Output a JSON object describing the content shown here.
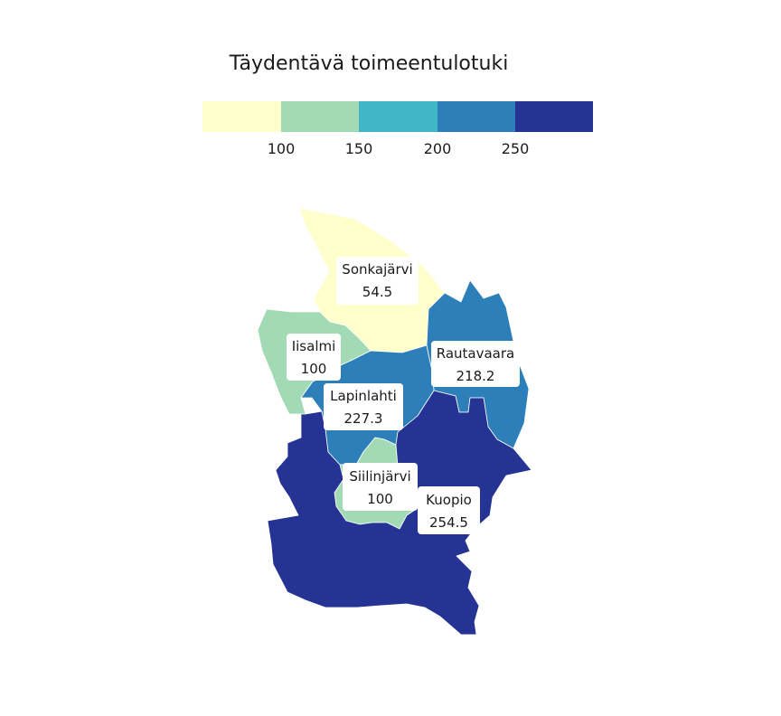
{
  "map": {
    "title": "Täydentävä toimeentulotuki",
    "legend": {
      "breaks": [
        100,
        150,
        200,
        250
      ],
      "tick_labels": [
        "100",
        "150",
        "200",
        "250"
      ],
      "colors": [
        "#ffffcc",
        "#a1dab4",
        "#41b6c4",
        "#2c7fb8",
        "#253494"
      ]
    },
    "regions": [
      {
        "name": "Sonkajärvi",
        "value_label": "54.5",
        "value": 54.5
      },
      {
        "name": "Iisalmi",
        "value_label": "100",
        "value": 100
      },
      {
        "name": "Rautavaara",
        "value_label": "218.2",
        "value": 218.2
      },
      {
        "name": "Lapinlahti",
        "value_label": "227.3",
        "value": 227.3
      },
      {
        "name": "Siilinjärvi",
        "value_label": "100",
        "value": 100
      },
      {
        "name": "Kuopio",
        "value_label": "254.5",
        "value": 254.5
      }
    ]
  }
}
